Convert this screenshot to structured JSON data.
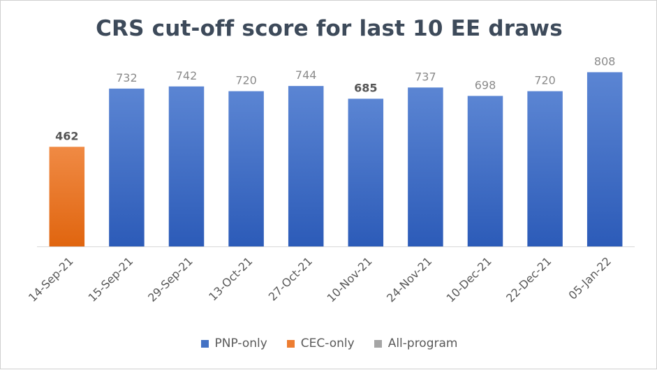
{
  "chart_data": {
    "type": "bar",
    "title": "CRS cut-off score for last 10 EE draws",
    "xlabel": "",
    "ylabel": "",
    "ylim": [
      0,
      900
    ],
    "grid": false,
    "legend_position": "bottom",
    "categories": [
      "14-Sep-21",
      "15-Sep-21",
      "29-Sep-21",
      "13-Oct-21",
      "27-Oct-21",
      "10-Nov-21",
      "24-Nov-21",
      "10-Dec-21",
      "22-Dec-21",
      "05-Jan-22"
    ],
    "values": [
      462,
      732,
      742,
      720,
      744,
      685,
      737,
      698,
      720,
      808
    ],
    "bar_series": [
      "CEC-only",
      "PNP-only",
      "PNP-only",
      "PNP-only",
      "PNP-only",
      "PNP-only",
      "PNP-only",
      "PNP-only",
      "PNP-only",
      "PNP-only"
    ],
    "bold_labels": [
      true,
      false,
      false,
      false,
      false,
      true,
      false,
      false,
      false,
      false
    ],
    "series": [
      {
        "name": "PNP-only",
        "color": "#4472c4"
      },
      {
        "name": "CEC-only",
        "color": "#ed7d31"
      },
      {
        "name": "All-program",
        "color": "#a5a5a5"
      }
    ]
  }
}
